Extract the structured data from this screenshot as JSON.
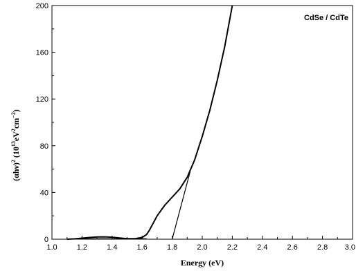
{
  "chart_data": {
    "type": "line",
    "xlabel": "Energy (eV)",
    "ylabel": {
      "main": "(αhν)",
      "sup1": "2",
      "open": " (10",
      "sup2": "13",
      "mid": "eV",
      "sup3": "2",
      "unit": "cm",
      "sup4": "−2",
      "close": ")"
    },
    "legend_text": "CdSe / CdTe",
    "legend_position": "top-right",
    "xlim": [
      1.0,
      3.0
    ],
    "ylim": [
      0,
      200
    ],
    "x_ticks": [
      "1.0",
      "1.2",
      "1.4",
      "1.6",
      "1.8",
      "2.0",
      "2.2",
      "2.4",
      "2.6",
      "2.8",
      "3.0"
    ],
    "y_ticks": [
      "0",
      "40",
      "80",
      "120",
      "160",
      "200"
    ],
    "grid": false,
    "series": [
      {
        "points": [
          [
            1.1,
            0
          ],
          [
            1.15,
            0.3
          ],
          [
            1.2,
            0.9
          ],
          [
            1.25,
            1.5
          ],
          [
            1.3,
            1.9
          ],
          [
            1.35,
            2.0
          ],
          [
            1.4,
            1.7
          ],
          [
            1.45,
            1.0
          ],
          [
            1.5,
            0.5
          ],
          [
            1.55,
            0.4
          ],
          [
            1.6,
            1.5
          ],
          [
            1.63,
            4
          ],
          [
            1.65,
            8
          ],
          [
            1.7,
            20
          ],
          [
            1.75,
            29
          ],
          [
            1.8,
            36
          ],
          [
            1.85,
            43
          ],
          [
            1.9,
            53
          ],
          [
            1.95,
            68
          ],
          [
            2.0,
            88
          ],
          [
            2.05,
            110
          ],
          [
            2.1,
            136
          ],
          [
            2.15,
            165
          ],
          [
            2.2,
            200
          ]
        ]
      },
      {
        "points": [
          [
            1.8,
            0
          ],
          [
            1.92,
            58
          ]
        ]
      },
      {
        "points": [
          [
            1.2,
            0.5
          ],
          [
            1.63,
            0.5
          ]
        ]
      }
    ]
  }
}
